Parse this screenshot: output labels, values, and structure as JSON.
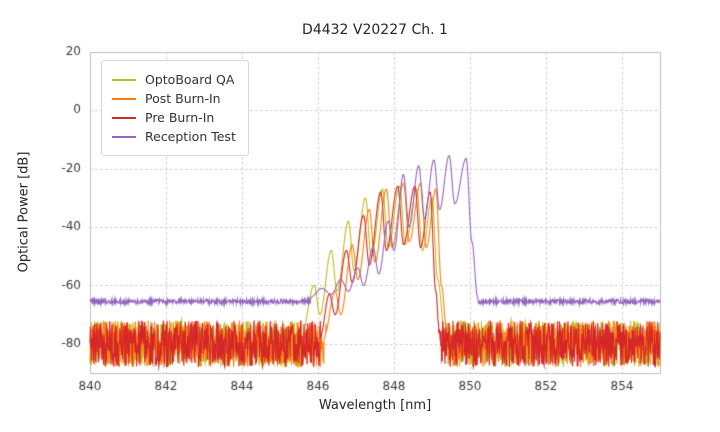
{
  "chart_data": {
    "type": "line",
    "title": "D4432 V20227 Ch. 1",
    "xlabel": "Wavelength [nm]",
    "ylabel": "Optical Power [dB]",
    "xlim": [
      840,
      855
    ],
    "ylim": [
      -90,
      20
    ],
    "x_ticks": [
      840,
      842,
      844,
      846,
      848,
      850,
      852,
      854
    ],
    "y_ticks": [
      20,
      0,
      -20,
      -40,
      -60,
      -80
    ],
    "grid": true,
    "legend_position": "upper-left",
    "series": [
      {
        "name": "OptoBoard QA",
        "color": "#bcbd22",
        "noise_floor_db": -80,
        "noise_amplitude_db": 8,
        "signal_points": [
          [
            845.55,
            -78
          ],
          [
            845.9,
            -60
          ],
          [
            846.05,
            -70
          ],
          [
            846.35,
            -48
          ],
          [
            846.5,
            -62
          ],
          [
            846.8,
            -38
          ],
          [
            846.95,
            -55
          ],
          [
            847.25,
            -30
          ],
          [
            847.4,
            -50
          ],
          [
            847.7,
            -27
          ],
          [
            847.85,
            -47
          ],
          [
            848.15,
            -26
          ],
          [
            848.3,
            -46
          ],
          [
            848.6,
            -27
          ],
          [
            848.75,
            -48
          ],
          [
            849.0,
            -30
          ],
          [
            849.15,
            -58
          ],
          [
            849.35,
            -78
          ]
        ]
      },
      {
        "name": "Post Burn-In",
        "color": "#ff7f0e",
        "noise_floor_db": -80,
        "noise_amplitude_db": 8,
        "signal_points": [
          [
            846.15,
            -78
          ],
          [
            846.45,
            -62
          ],
          [
            846.6,
            -70
          ],
          [
            846.9,
            -46
          ],
          [
            847.05,
            -58
          ],
          [
            847.35,
            -34
          ],
          [
            847.5,
            -52
          ],
          [
            847.8,
            -27
          ],
          [
            847.95,
            -47
          ],
          [
            848.25,
            -25
          ],
          [
            848.4,
            -45
          ],
          [
            848.7,
            -25
          ],
          [
            848.85,
            -47
          ],
          [
            849.1,
            -27
          ],
          [
            849.25,
            -60
          ],
          [
            849.4,
            -78
          ]
        ]
      },
      {
        "name": "Pre Burn-In",
        "color": "#d62728",
        "noise_floor_db": -80,
        "noise_amplitude_db": 8,
        "signal_points": [
          [
            846.05,
            -78
          ],
          [
            846.3,
            -63
          ],
          [
            846.45,
            -70
          ],
          [
            846.75,
            -48
          ],
          [
            846.9,
            -59
          ],
          [
            847.2,
            -36
          ],
          [
            847.35,
            -53
          ],
          [
            847.65,
            -28
          ],
          [
            847.8,
            -48
          ],
          [
            848.1,
            -26
          ],
          [
            848.25,
            -46
          ],
          [
            848.55,
            -26
          ],
          [
            848.7,
            -47
          ],
          [
            848.95,
            -28
          ],
          [
            849.1,
            -62
          ],
          [
            849.2,
            -78
          ]
        ]
      },
      {
        "name": "Reception Test",
        "color": "#9467bd",
        "noise_floor_db": -65.5,
        "noise_amplitude_db": 0.8,
        "signal_points": [
          [
            845.8,
            -64
          ],
          [
            846.1,
            -61
          ],
          [
            846.35,
            -63
          ],
          [
            846.6,
            -58
          ],
          [
            846.8,
            -62
          ],
          [
            847.05,
            -54
          ],
          [
            847.2,
            -60
          ],
          [
            847.45,
            -47
          ],
          [
            847.6,
            -56
          ],
          [
            847.85,
            -38
          ],
          [
            848.0,
            -48
          ],
          [
            848.25,
            -22
          ],
          [
            848.4,
            -40
          ],
          [
            848.65,
            -19
          ],
          [
            848.8,
            -37
          ],
          [
            849.05,
            -17
          ],
          [
            849.2,
            -34
          ],
          [
            849.45,
            -15.5
          ],
          [
            849.6,
            -32
          ],
          [
            849.9,
            -16.5
          ],
          [
            850.05,
            -45
          ],
          [
            850.2,
            -64
          ]
        ]
      }
    ]
  }
}
